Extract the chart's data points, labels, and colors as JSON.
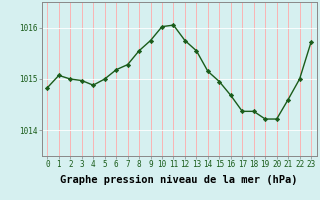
{
  "x": [
    0,
    1,
    2,
    3,
    4,
    5,
    6,
    7,
    8,
    9,
    10,
    11,
    12,
    13,
    14,
    15,
    16,
    17,
    18,
    19,
    20,
    21,
    22,
    23
  ],
  "y": [
    1014.83,
    1015.07,
    1015.0,
    1014.97,
    1014.88,
    1015.0,
    1015.18,
    1015.28,
    1015.55,
    1015.75,
    1016.02,
    1016.05,
    1015.75,
    1015.55,
    1015.15,
    1014.95,
    1014.68,
    1014.37,
    1014.37,
    1014.22,
    1014.22,
    1014.6,
    1015.0,
    1015.72
  ],
  "line_color": "#1a5c1a",
  "marker": "D",
  "marker_size": 2.2,
  "bg_color": "#d6f0f0",
  "grid_color": "#ffffff",
  "xlabel": "Graphe pression niveau de la mer (hPa)",
  "xlabel_fontsize": 7.5,
  "ytick_labels": [
    "1014",
    "1015",
    "1016"
  ],
  "yticks": [
    1014,
    1015,
    1016
  ],
  "ylim": [
    1013.5,
    1016.5
  ],
  "xlim": [
    -0.5,
    23.5
  ],
  "xticks": [
    0,
    1,
    2,
    3,
    4,
    5,
    6,
    7,
    8,
    9,
    10,
    11,
    12,
    13,
    14,
    15,
    16,
    17,
    18,
    19,
    20,
    21,
    22,
    23
  ],
  "tick_fontsize": 5.5,
  "line_width": 1.0,
  "spine_color": "#888888",
  "grid_line_color": "#ff9999",
  "grid_alpha": 1.0
}
